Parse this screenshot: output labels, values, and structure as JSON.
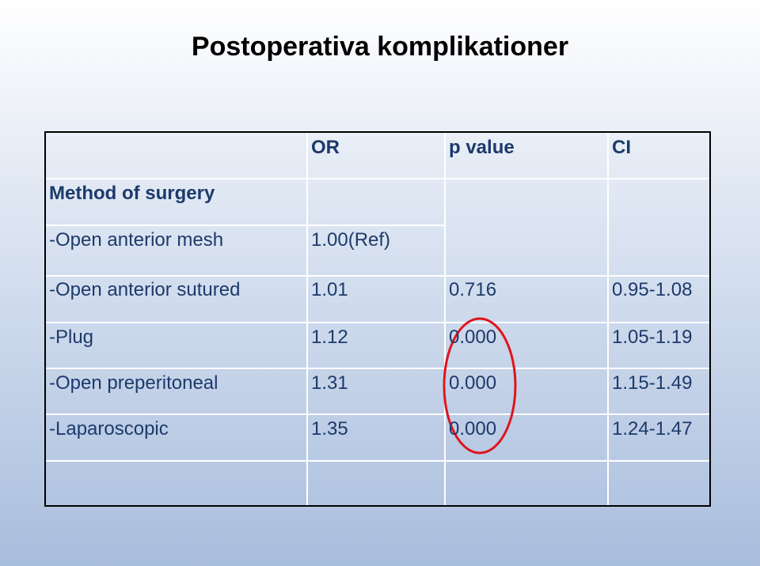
{
  "title": "Postoperativa komplikationer",
  "table": {
    "header": [
      null,
      "OR",
      "p value",
      "CI"
    ],
    "rows": [
      [
        "Method of surgery",
        null,
        null,
        null
      ],
      [
        "-Open anterior mesh",
        "1.00(Ref)",
        null,
        null
      ],
      [
        "-Open anterior sutured",
        "1.01",
        "0.716",
        "0.95-1.08"
      ],
      [
        "-Plug",
        "1.12",
        "0.000",
        "1.05-1.19"
      ],
      [
        "-Open preperitoneal",
        "1.31",
        "0.000",
        "1.15-1.49"
      ],
      [
        "-Laparoscopic",
        "1.35",
        "0.000",
        "1.24-1.47"
      ]
    ]
  }
}
